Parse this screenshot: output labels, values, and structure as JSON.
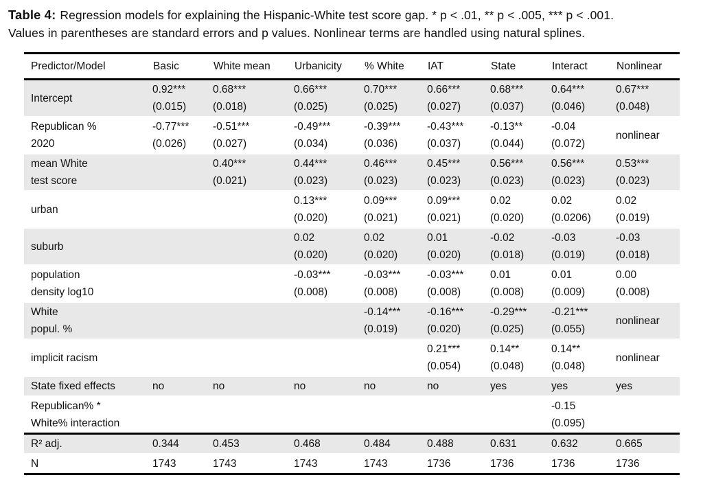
{
  "caption": {
    "label": "Table 4:",
    "line1": "Regression models for explaining the Hispanic-White test score gap. * p < .01, ** p < .005, *** p < .001.",
    "line2": "Values in parentheses are standard errors and p values. Nonlinear terms are handled using natural splines."
  },
  "table": {
    "columns": [
      "Predictor/Model",
      "Basic",
      "White mean",
      "Urbanicity",
      "% White",
      "IAT",
      "State",
      "Interact",
      "Nonlinear"
    ],
    "rows": [
      {
        "label": "Intercept",
        "shaded": true,
        "cells": [
          "0.92***\n(0.015)",
          "0.68***\n(0.018)",
          "0.66***\n(0.025)",
          "0.70***\n(0.025)",
          "0.66***\n(0.027)",
          "0.68***\n(0.037)",
          "0.64***\n(0.046)",
          "0.67***\n(0.048)"
        ]
      },
      {
        "label": "Republican %\n2020",
        "shaded": false,
        "cells": [
          "-0.77***\n(0.026)",
          "-0.51***\n(0.027)",
          "-0.49***\n(0.034)",
          "-0.39***\n(0.036)",
          "-0.43***\n(0.037)",
          "-0.13**\n(0.044)",
          "-0.04\n(0.072)",
          "nonlinear"
        ]
      },
      {
        "label": "mean White\ntest score",
        "shaded": true,
        "cells": [
          "",
          "0.40***\n(0.021)",
          "0.44***\n(0.023)",
          "0.46***\n(0.023)",
          "0.45***\n(0.023)",
          "0.56***\n(0.023)",
          "0.56***\n(0.023)",
          "0.53***\n(0.023)"
        ]
      },
      {
        "label": "urban",
        "shaded": false,
        "cells": [
          "",
          "",
          "0.13***\n(0.020)",
          "0.09***\n(0.021)",
          "0.09***\n(0.021)",
          "0.02\n(0.020)",
          "0.02\n(0.0206)",
          "0.02\n(0.019)"
        ]
      },
      {
        "label": "suburb",
        "shaded": true,
        "cells": [
          "",
          "",
          "0.02\n(0.020)",
          "0.02\n(0.020)",
          "0.01\n(0.020)",
          "-0.02\n(0.018)",
          "-0.03\n(0.019)",
          "-0.03\n(0.018)"
        ]
      },
      {
        "label": "population\ndensity log10",
        "shaded": false,
        "cells": [
          "",
          "",
          "-0.03***\n(0.008)",
          "-0.03***\n(0.008)",
          "-0.03***\n(0.008)",
          "0.01\n(0.008)",
          "0.01\n(0.009)",
          "0.00\n(0.008)"
        ]
      },
      {
        "label": "White\npopul. %",
        "shaded": true,
        "cells": [
          "",
          "",
          "",
          "-0.14***\n(0.019)",
          "-0.16***\n(0.020)",
          "-0.29***\n(0.025)",
          "-0.21***\n(0.055)",
          "nonlinear"
        ]
      },
      {
        "label": "implicit racism",
        "shaded": false,
        "cells": [
          "",
          "",
          "",
          "",
          "0.21***\n(0.054)",
          "0.14**\n(0.048)",
          "0.14**\n(0.048)",
          "nonlinear"
        ]
      },
      {
        "label": "State fixed effects",
        "shaded": true,
        "cells": [
          "no",
          "no",
          "no",
          "no",
          "no",
          "yes",
          "yes",
          "yes"
        ]
      },
      {
        "label": "Republican% *\nWhite% interaction",
        "shaded": false,
        "cells": [
          "",
          "",
          "",
          "",
          "",
          "",
          "-0.15\n(0.095)",
          ""
        ]
      }
    ],
    "footer_rows": [
      {
        "label": "R² adj.",
        "shaded": true,
        "cells": [
          "0.344",
          "0.453",
          "0.468",
          "0.484",
          "0.488",
          "0.631",
          "0.632",
          "0.665"
        ]
      },
      {
        "label": "N",
        "shaded": false,
        "cells": [
          "1743",
          "1743",
          "1743",
          "1743",
          "1736",
          "1736",
          "1736",
          "1736"
        ]
      }
    ]
  }
}
